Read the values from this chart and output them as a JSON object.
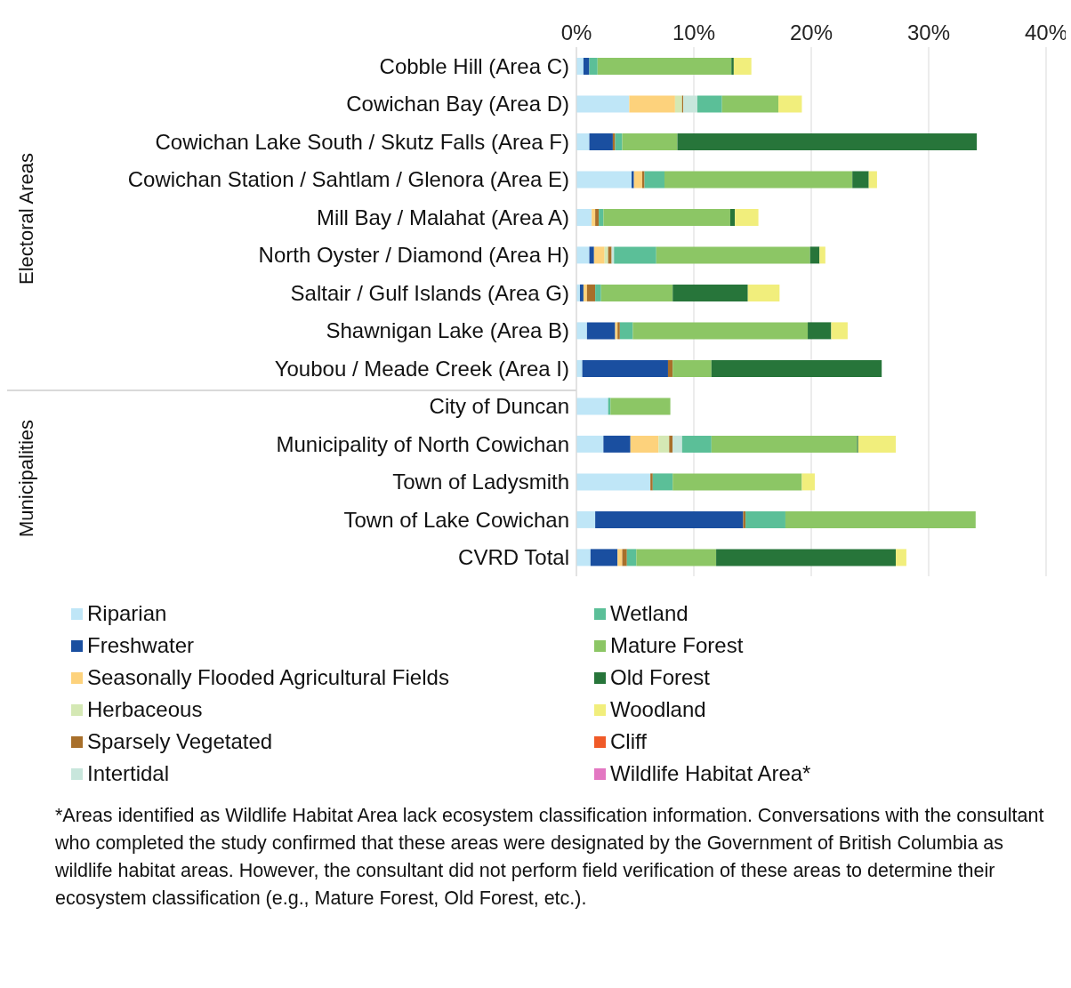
{
  "chart_data": {
    "type": "bar",
    "orientation": "horizontal",
    "stacked": true,
    "categories": [
      "Cobble Hill (Area C)",
      "Cowichan Bay (Area D)",
      "Cowichan Lake South / Skutz Falls (Area F)",
      "Cowichan Station / Sahtlam / Glenora (Area E)",
      "Mill Bay / Malahat (Area A)",
      "North Oyster / Diamond (Area H)",
      "Saltair / Gulf Islands (Area G)",
      "Shawnigan Lake (Area B)",
      "Youbou / Meade Creek (Area I)",
      "City of Duncan",
      "Municipality of North Cowichan",
      "Town of Ladysmith",
      "Town of Lake Cowichan",
      "CVRD Total"
    ],
    "series": [
      {
        "name": "Riparian",
        "color": "#bfe6f7",
        "values": [
          0.6,
          4.5,
          1.1,
          4.7,
          1.3,
          1.1,
          0.3,
          0.9,
          0.5,
          2.7,
          2.3,
          6.3,
          1.6,
          1.2
        ]
      },
      {
        "name": "Freshwater",
        "color": "#1a4fa0",
        "values": [
          0.5,
          0,
          2.0,
          0.2,
          0,
          0.4,
          0.3,
          2.4,
          7.3,
          0,
          2.3,
          0,
          12.6,
          2.3
        ]
      },
      {
        "name": "Seasonally Flooded Agricultural Fields",
        "color": "#fdd27c",
        "values": [
          0,
          3.9,
          0,
          0.7,
          0.3,
          0.9,
          0.3,
          0.2,
          0,
          0,
          2.4,
          0,
          0,
          0.4
        ]
      },
      {
        "name": "Herbaceous",
        "color": "#d4e8b4",
        "values": [
          0,
          0.6,
          0,
          0,
          0,
          0.3,
          0,
          0,
          0,
          0,
          0.9,
          0,
          0,
          0
        ]
      },
      {
        "name": "Sparsely Vegetated",
        "color": "#a86f2a",
        "values": [
          0,
          0.1,
          0.2,
          0.2,
          0.3,
          0.3,
          0.7,
          0.2,
          0.4,
          0,
          0.3,
          0.2,
          0.2,
          0.4
        ]
      },
      {
        "name": "Intertidal",
        "color": "#c8e6dc",
        "values": [
          null,
          1.2,
          0,
          0,
          0,
          0.2,
          0,
          0,
          0,
          0,
          0.8,
          0,
          0,
          0
        ]
      },
      {
        "name": "Wetland",
        "color": "#5bbf98",
        "values": [
          0.7,
          2.1,
          0.6,
          1.7,
          0.4,
          3.6,
          0.5,
          1.1,
          0,
          0.2,
          2.5,
          1.7,
          3.4,
          0.8
        ]
      },
      {
        "name": "Mature Forest",
        "color": "#8cc665",
        "values": [
          11.4,
          4.8,
          4.7,
          16.0,
          10.8,
          13.1,
          6.1,
          14.9,
          3.3,
          5.1,
          12.4,
          11.0,
          16.2,
          6.8
        ]
      },
      {
        "name": "Old Forest",
        "color": "#27753a",
        "values": [
          0.2,
          0,
          25.5,
          1.4,
          0.4,
          0.8,
          6.4,
          2.0,
          14.5,
          0,
          0.1,
          0,
          0,
          15.3
        ]
      },
      {
        "name": "Woodland",
        "color": "#f1ee7c",
        "values": [
          1.5,
          2.0,
          0,
          0.7,
          2.0,
          0.5,
          2.7,
          1.4,
          0,
          0,
          3.2,
          1.1,
          0,
          0.9
        ]
      },
      {
        "name": "Cliff",
        "color": "#f05a28",
        "values": [
          0,
          0,
          0,
          0,
          0,
          0,
          0,
          0,
          0,
          0,
          0,
          0,
          0,
          0
        ]
      },
      {
        "name": "Wildlife Habitat Area*",
        "color": "#e377c2",
        "values": [
          0,
          0,
          0,
          0,
          0,
          0,
          0,
          0,
          0,
          0,
          0,
          0,
          0,
          0
        ]
      }
    ],
    "xlim": [
      0,
      40
    ],
    "xticks": [
      {
        "value": 0,
        "label": "0%"
      },
      {
        "value": 10,
        "label": "10%"
      },
      {
        "value": 20,
        "label": "20%"
      },
      {
        "value": 30,
        "label": "30%"
      },
      {
        "value": 40,
        "label": "40%"
      }
    ],
    "grid": "x",
    "legend": "bottom",
    "annotations": [
      "Electoral Areas",
      "Municipalities",
      "*Areas identified as Wildlife Habitat Area lack ecosystem classification information. Conversations with the consultant who completed the study confirmed that these areas were designated by the Government of British Columbia as wildlife habitat areas.  However, the consultant did not perform field verification of these areas to determine their ecosystem classification (e.g., Mature Forest, Old Forest, etc.)."
    ]
  }
}
